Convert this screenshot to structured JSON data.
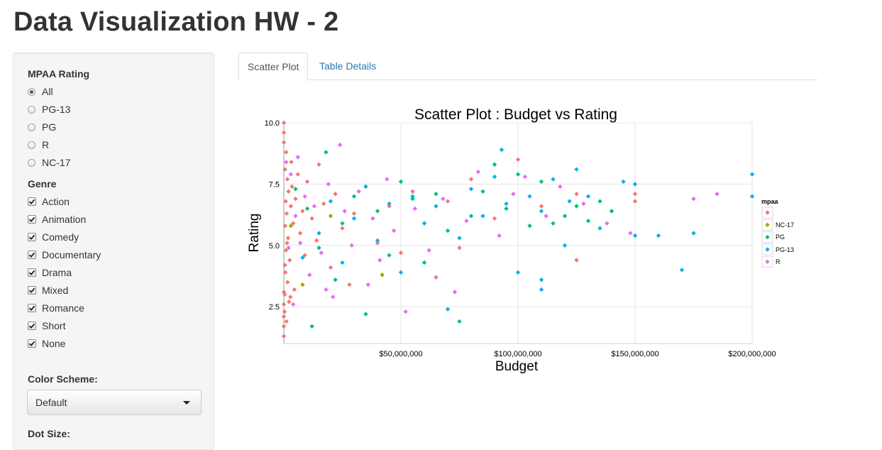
{
  "page": {
    "title": "Data Visualization HW - 2"
  },
  "sidebar": {
    "mpaa_label": "MPAA Rating",
    "mpaa_options": [
      "All",
      "PG-13",
      "PG",
      "R",
      "NC-17"
    ],
    "mpaa_selected": "All",
    "genre_label": "Genre",
    "genre_options": [
      "Action",
      "Animation",
      "Comedy",
      "Documentary",
      "Drama",
      "Mixed",
      "Romance",
      "Short",
      "None"
    ],
    "color_scheme_label": "Color Scheme:",
    "color_scheme_value": "Default",
    "dot_size_label": "Dot Size:"
  },
  "tabs": [
    {
      "label": "Scatter Plot",
      "active": true
    },
    {
      "label": "Table Details",
      "active": false
    }
  ],
  "chart_data": {
    "type": "scatter",
    "title": "Scatter Plot : Budget vs Rating",
    "xlabel": "Budget",
    "ylabel": "Rating",
    "xlim": [
      0,
      200000000
    ],
    "ylim": [
      1,
      10
    ],
    "x_ticks": [
      50000000,
      100000000,
      150000000,
      200000000
    ],
    "x_tick_labels": [
      "$50,000,000",
      "$100,000,000",
      "$150,000,000",
      "$200,000,000"
    ],
    "y_ticks": [
      2.5,
      5.0,
      7.5,
      10.0
    ],
    "y_tick_labels": [
      "2.5",
      "5.0",
      "7.5",
      "10.0"
    ],
    "grid": true,
    "legend_title": "mpaa",
    "legend_position": "right",
    "series": [
      {
        "name": "",
        "color": "#f8766d",
        "points": [
          [
            0,
            10.0
          ],
          [
            0,
            9.6
          ],
          [
            0,
            9.2
          ],
          [
            0,
            1.3
          ],
          [
            0,
            1.7
          ],
          [
            0,
            2.1
          ],
          [
            0,
            2.6
          ],
          [
            0,
            3.1
          ],
          [
            1000000,
            8.8
          ],
          [
            500000,
            8.1
          ],
          [
            1500000,
            7.7
          ],
          [
            2000000,
            7.2
          ],
          [
            800000,
            6.8
          ],
          [
            1200000,
            6.3
          ],
          [
            600000,
            5.8
          ],
          [
            1800000,
            5.3
          ],
          [
            900000,
            4.8
          ],
          [
            2500000,
            4.4
          ],
          [
            700000,
            3.9
          ],
          [
            1600000,
            3.5
          ],
          [
            400000,
            3.0
          ],
          [
            2200000,
            2.7
          ],
          [
            300000,
            2.3
          ],
          [
            1100000,
            1.9
          ],
          [
            3000000,
            6.6
          ],
          [
            3500000,
            7.4
          ],
          [
            4000000,
            5.9
          ],
          [
            5000000,
            6.9
          ],
          [
            6000000,
            7.9
          ],
          [
            7000000,
            5.5
          ],
          [
            8000000,
            6.4
          ],
          [
            9000000,
            4.6
          ],
          [
            10000000,
            7.6
          ],
          [
            12000000,
            6.1
          ],
          [
            14000000,
            5.2
          ],
          [
            15000000,
            8.3
          ],
          [
            17000000,
            6.7
          ],
          [
            20000000,
            4.1
          ],
          [
            22000000,
            7.1
          ],
          [
            25000000,
            5.7
          ],
          [
            28000000,
            3.4
          ],
          [
            30000000,
            6.3
          ],
          [
            35000000,
            7.4
          ],
          [
            40000000,
            5.1
          ],
          [
            45000000,
            6.6
          ],
          [
            50000000,
            4.7
          ],
          [
            55000000,
            7.2
          ],
          [
            60000000,
            5.9
          ],
          [
            65000000,
            3.7
          ],
          [
            70000000,
            6.8
          ],
          [
            75000000,
            4.9
          ],
          [
            80000000,
            7.7
          ],
          [
            90000000,
            6.1
          ],
          [
            100000000,
            8.5
          ],
          [
            110000000,
            6.6
          ],
          [
            125000000,
            4.4
          ],
          [
            125000000,
            7.1
          ],
          [
            150000000,
            6.8
          ],
          [
            150000000,
            7.1
          ],
          [
            500000,
            4.2
          ],
          [
            1400000,
            5.1
          ],
          [
            2800000,
            2.9
          ],
          [
            3200000,
            8.4
          ],
          [
            4500000,
            3.2
          ]
        ]
      },
      {
        "name": "NC-17",
        "color": "#a3a500",
        "points": [
          [
            3000000,
            5.8
          ],
          [
            8000000,
            3.4
          ],
          [
            42000000,
            3.8
          ],
          [
            20000000,
            6.2
          ]
        ]
      },
      {
        "name": "PG",
        "color": "#00bf7d",
        "points": [
          [
            5000000,
            7.3
          ],
          [
            10000000,
            6.5
          ],
          [
            18000000,
            8.8
          ],
          [
            25000000,
            5.9
          ],
          [
            30000000,
            7.0
          ],
          [
            35000000,
            2.2
          ],
          [
            40000000,
            6.4
          ],
          [
            45000000,
            4.6
          ],
          [
            50000000,
            7.6
          ],
          [
            55000000,
            6.9
          ],
          [
            60000000,
            4.3
          ],
          [
            65000000,
            7.1
          ],
          [
            70000000,
            5.6
          ],
          [
            75000000,
            1.9
          ],
          [
            80000000,
            6.2
          ],
          [
            85000000,
            7.2
          ],
          [
            90000000,
            8.3
          ],
          [
            95000000,
            6.5
          ],
          [
            100000000,
            7.9
          ],
          [
            105000000,
            5.8
          ],
          [
            110000000,
            7.6
          ],
          [
            115000000,
            5.9
          ],
          [
            120000000,
            6.2
          ],
          [
            125000000,
            6.6
          ],
          [
            130000000,
            6.0
          ],
          [
            135000000,
            6.8
          ],
          [
            140000000,
            6.4
          ],
          [
            15000000,
            4.9
          ],
          [
            22000000,
            3.6
          ],
          [
            12000000,
            1.7
          ]
        ]
      },
      {
        "name": "PG-13",
        "color": "#00b0f6",
        "points": [
          [
            8000000,
            4.5
          ],
          [
            15000000,
            5.5
          ],
          [
            20000000,
            6.8
          ],
          [
            25000000,
            4.3
          ],
          [
            30000000,
            6.1
          ],
          [
            35000000,
            7.4
          ],
          [
            40000000,
            5.2
          ],
          [
            45000000,
            6.7
          ],
          [
            50000000,
            3.9
          ],
          [
            55000000,
            7.0
          ],
          [
            60000000,
            5.9
          ],
          [
            65000000,
            6.6
          ],
          [
            70000000,
            2.4
          ],
          [
            75000000,
            5.3
          ],
          [
            80000000,
            7.3
          ],
          [
            85000000,
            6.2
          ],
          [
            90000000,
            7.8
          ],
          [
            93000000,
            8.9
          ],
          [
            95000000,
            6.7
          ],
          [
            100000000,
            3.9
          ],
          [
            105000000,
            7.0
          ],
          [
            110000000,
            6.4
          ],
          [
            110000000,
            3.6
          ],
          [
            110000000,
            3.2
          ],
          [
            115000000,
            7.7
          ],
          [
            120000000,
            5.0
          ],
          [
            122000000,
            6.8
          ],
          [
            125000000,
            8.1
          ],
          [
            130000000,
            7.0
          ],
          [
            135000000,
            5.7
          ],
          [
            140000000,
            6.4
          ],
          [
            145000000,
            7.6
          ],
          [
            150000000,
            7.5
          ],
          [
            150000000,
            5.4
          ],
          [
            160000000,
            5.4
          ],
          [
            170000000,
            4.0
          ],
          [
            175000000,
            5.5
          ],
          [
            200000000,
            7.9
          ],
          [
            200000000,
            7.0
          ]
        ]
      },
      {
        "name": "R",
        "color": "#e76bf3",
        "points": [
          [
            1000000,
            8.4
          ],
          [
            3000000,
            7.9
          ],
          [
            5000000,
            6.2
          ],
          [
            7000000,
            5.1
          ],
          [
            9000000,
            7.0
          ],
          [
            11000000,
            3.8
          ],
          [
            13000000,
            6.6
          ],
          [
            16000000,
            4.7
          ],
          [
            19000000,
            7.5
          ],
          [
            21000000,
            2.9
          ],
          [
            24000000,
            9.1
          ],
          [
            26000000,
            6.4
          ],
          [
            29000000,
            5.0
          ],
          [
            32000000,
            7.2
          ],
          [
            36000000,
            3.4
          ],
          [
            38000000,
            6.1
          ],
          [
            41000000,
            4.4
          ],
          [
            44000000,
            7.7
          ],
          [
            47000000,
            5.6
          ],
          [
            52000000,
            2.3
          ],
          [
            56000000,
            6.5
          ],
          [
            62000000,
            4.8
          ],
          [
            68000000,
            6.9
          ],
          [
            73000000,
            3.1
          ],
          [
            78000000,
            6.0
          ],
          [
            83000000,
            8.0
          ],
          [
            92000000,
            5.4
          ],
          [
            98000000,
            7.1
          ],
          [
            103000000,
            7.8
          ],
          [
            112000000,
            6.2
          ],
          [
            118000000,
            7.4
          ],
          [
            128000000,
            6.7
          ],
          [
            138000000,
            5.9
          ],
          [
            148000000,
            5.5
          ],
          [
            175000000,
            6.9
          ],
          [
            185000000,
            7.1
          ],
          [
            4000000,
            2.6
          ],
          [
            2000000,
            4.9
          ],
          [
            6000000,
            8.6
          ],
          [
            18000000,
            3.2
          ]
        ]
      }
    ]
  }
}
